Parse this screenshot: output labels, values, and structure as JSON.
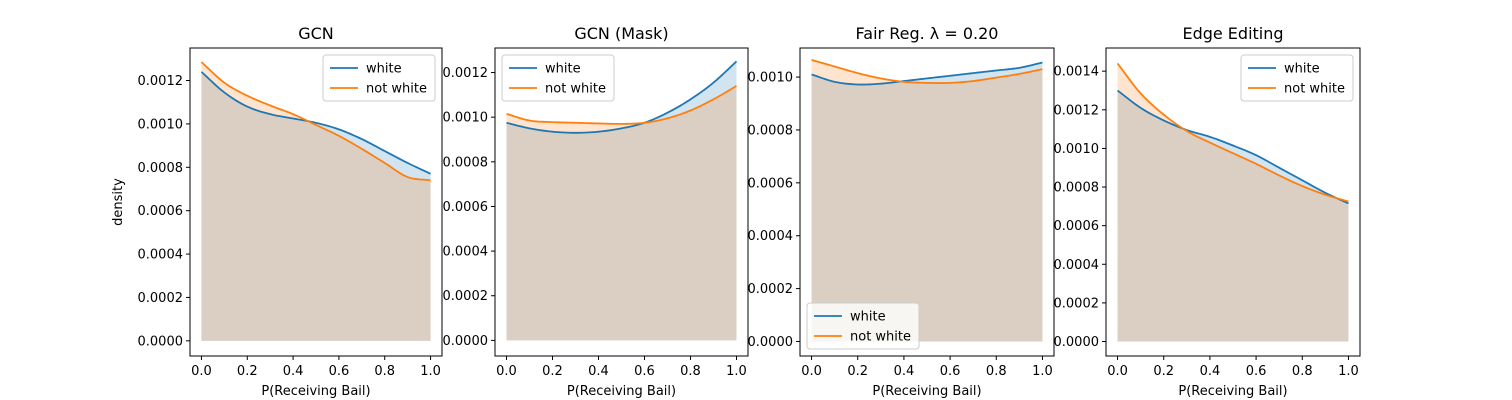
{
  "figure": {
    "shared_xlabel": "P(Receiving Bail)",
    "shared_ylabel": "density"
  },
  "chart_data": [
    {
      "type": "area",
      "title": "GCN",
      "xlabel": "P(Receiving Bail)",
      "ylabel": "density",
      "xlim": [
        -0.05,
        1.05
      ],
      "ylim": [
        -7e-05,
        0.00135
      ],
      "xticks": [
        0.0,
        0.2,
        0.4,
        0.6,
        0.8,
        1.0
      ],
      "xtick_labels": [
        "0.0",
        "0.2",
        "0.4",
        "0.6",
        "0.8",
        "1.0"
      ],
      "yticks": [
        0.0,
        0.0002,
        0.0004,
        0.0006,
        0.0008,
        0.001,
        0.0012
      ],
      "ytick_labels": [
        "0.0000",
        "0.0002",
        "0.0004",
        "0.0006",
        "0.0008",
        "0.0010",
        "0.0012"
      ],
      "legend": "upper-right",
      "x": [
        0.0,
        0.1,
        0.2,
        0.3,
        0.4,
        0.5,
        0.6,
        0.7,
        0.8,
        0.9,
        1.0
      ],
      "series": [
        {
          "name": "white",
          "color": "#1f77b4",
          "values": [
            0.00124,
            0.001145,
            0.00108,
            0.001045,
            0.001025,
            0.001005,
            0.000975,
            0.00093,
            0.000875,
            0.00082,
            0.00077
          ]
        },
        {
          "name": "not white",
          "color": "#ff7f0e",
          "values": [
            0.001285,
            0.00119,
            0.00113,
            0.001085,
            0.001045,
            0.000995,
            0.000945,
            0.000885,
            0.00082,
            0.000755,
            0.00074
          ]
        }
      ]
    },
    {
      "type": "area",
      "title": "GCN (Mask)",
      "xlabel": "P(Receiving Bail)",
      "ylabel": "",
      "xlim": [
        -0.05,
        1.05
      ],
      "ylim": [
        -7e-05,
        0.00131
      ],
      "xticks": [
        0.0,
        0.2,
        0.4,
        0.6,
        0.8,
        1.0
      ],
      "xtick_labels": [
        "0.0",
        "0.2",
        "0.4",
        "0.6",
        "0.8",
        "1.0"
      ],
      "yticks": [
        0.0,
        0.0002,
        0.0004,
        0.0006,
        0.0008,
        0.001,
        0.0012
      ],
      "ytick_labels": [
        "0.0000",
        "0.0002",
        "0.0004",
        "0.0006",
        "0.0008",
        "0.0010",
        "0.0012"
      ],
      "legend": "upper-left",
      "x": [
        0.0,
        0.1,
        0.2,
        0.3,
        0.4,
        0.5,
        0.6,
        0.7,
        0.8,
        0.9,
        1.0
      ],
      "series": [
        {
          "name": "white",
          "color": "#1f77b4",
          "values": [
            0.000975,
            0.00095,
            0.000935,
            0.00093,
            0.000935,
            0.00095,
            0.000975,
            0.00102,
            0.00108,
            0.001155,
            0.00125
          ]
        },
        {
          "name": "not white",
          "color": "#ff7f0e",
          "values": [
            0.001015,
            0.000985,
            0.000978,
            0.000975,
            0.000972,
            0.00097,
            0.000975,
            0.000995,
            0.00103,
            0.00108,
            0.00114
          ]
        }
      ]
    },
    {
      "type": "area",
      "title": "Fair Reg. λ = 0.20",
      "xlabel": "P(Receiving Bail)",
      "ylabel": "",
      "xlim": [
        -0.05,
        1.05
      ],
      "ylim": [
        -5.5e-05,
        0.00111
      ],
      "xticks": [
        0.0,
        0.2,
        0.4,
        0.6,
        0.8,
        1.0
      ],
      "xtick_labels": [
        "0.0",
        "0.2",
        "0.4",
        "0.6",
        "0.8",
        "1.0"
      ],
      "yticks": [
        0.0,
        0.0002,
        0.0004,
        0.0006,
        0.0008,
        0.001
      ],
      "ytick_labels": [
        "0.0000",
        "0.0002",
        "0.0004",
        "0.0006",
        "0.0008",
        "0.0010"
      ],
      "legend": "lower-left",
      "x": [
        0.0,
        0.1,
        0.2,
        0.3,
        0.4,
        0.5,
        0.6,
        0.7,
        0.8,
        0.9,
        1.0
      ],
      "series": [
        {
          "name": "white",
          "color": "#1f77b4",
          "values": [
            0.00101,
            0.000982,
            0.000972,
            0.000975,
            0.000985,
            0.000995,
            0.001005,
            0.001015,
            0.001025,
            0.001035,
            0.001055
          ]
        },
        {
          "name": "not white",
          "color": "#ff7f0e",
          "values": [
            0.001065,
            0.00104,
            0.001015,
            0.000995,
            0.000982,
            0.000978,
            0.000978,
            0.000985,
            0.000998,
            0.001012,
            0.00103
          ]
        }
      ]
    },
    {
      "type": "area",
      "title": "Edge Editing",
      "xlabel": "P(Receiving Bail)",
      "ylabel": "",
      "xlim": [
        -0.05,
        1.05
      ],
      "ylim": [
        -7.5e-05,
        0.00152
      ],
      "xticks": [
        0.0,
        0.2,
        0.4,
        0.6,
        0.8,
        1.0
      ],
      "xtick_labels": [
        "0.0",
        "0.2",
        "0.4",
        "0.6",
        "0.8",
        "1.0"
      ],
      "yticks": [
        0.0,
        0.0002,
        0.0004,
        0.0006,
        0.0008,
        0.001,
        0.0012,
        0.0014
      ],
      "ytick_labels": [
        "0.0000",
        "0.0002",
        "0.0004",
        "0.0006",
        "0.0008",
        "0.0010",
        "0.0012",
        "0.0014"
      ],
      "legend": "upper-right",
      "x": [
        0.0,
        0.1,
        0.2,
        0.3,
        0.4,
        0.5,
        0.6,
        0.7,
        0.8,
        0.9,
        1.0
      ],
      "series": [
        {
          "name": "white",
          "color": "#1f77b4",
          "values": [
            0.0013,
            0.00121,
            0.001145,
            0.001095,
            0.00106,
            0.001015,
            0.000965,
            0.0009,
            0.000835,
            0.00077,
            0.000715
          ]
        },
        {
          "name": "not white",
          "color": "#ff7f0e",
          "values": [
            0.00144,
            0.001285,
            0.001175,
            0.00109,
            0.00103,
            0.000975,
            0.00092,
            0.00086,
            0.000805,
            0.00076,
            0.000725
          ]
        }
      ]
    }
  ]
}
